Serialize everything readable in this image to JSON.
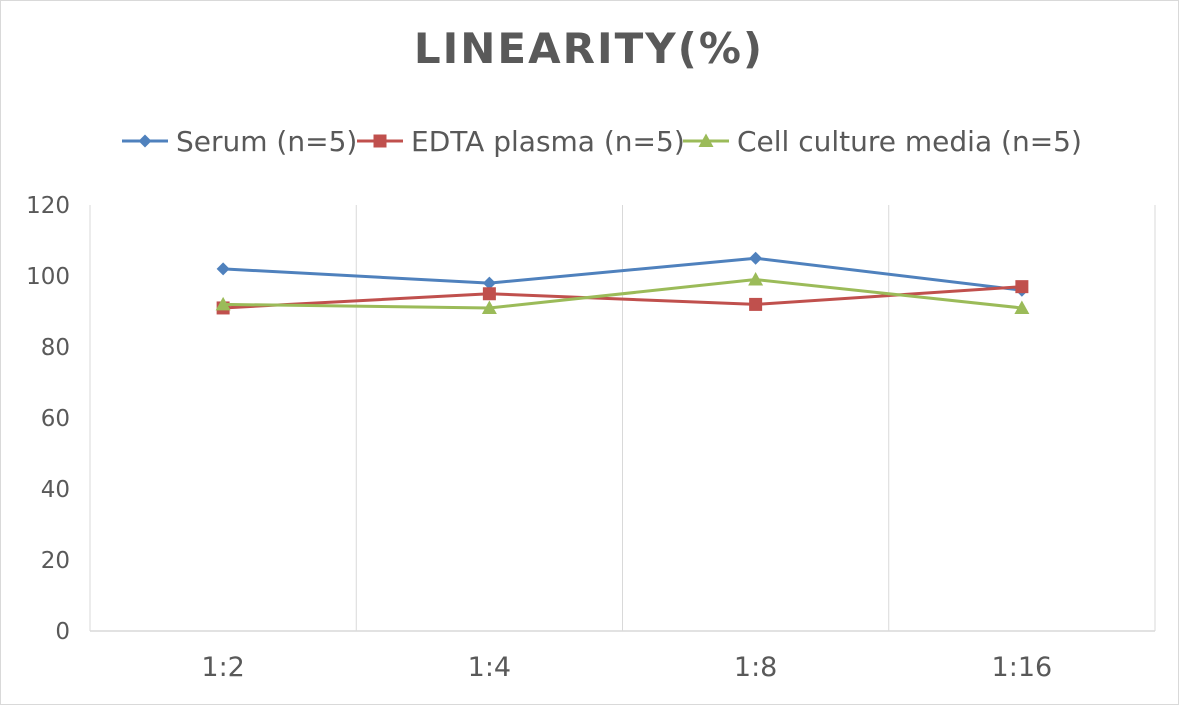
{
  "chart_data": {
    "type": "line",
    "title": "LINEARITY(%)",
    "xlabel": "",
    "ylabel": "",
    "categories": [
      "1:2",
      "1:4",
      "1:8",
      "1:16"
    ],
    "ylim": [
      0,
      120
    ],
    "yticks": [
      0,
      20,
      40,
      60,
      80,
      100,
      120
    ],
    "grid": "vertical",
    "legend": "top",
    "series": [
      {
        "name": "Serum (n=5)",
        "values": [
          102,
          98,
          105,
          96
        ],
        "color": "#4f81bd",
        "marker": "diamond"
      },
      {
        "name": "EDTA plasma (n=5)",
        "values": [
          91,
          95,
          92,
          97
        ],
        "color": "#c0504d",
        "marker": "square"
      },
      {
        "name": "Cell culture media (n=5)",
        "values": [
          92,
          91,
          99,
          91
        ],
        "color": "#9bbb59",
        "marker": "triangle"
      }
    ]
  }
}
